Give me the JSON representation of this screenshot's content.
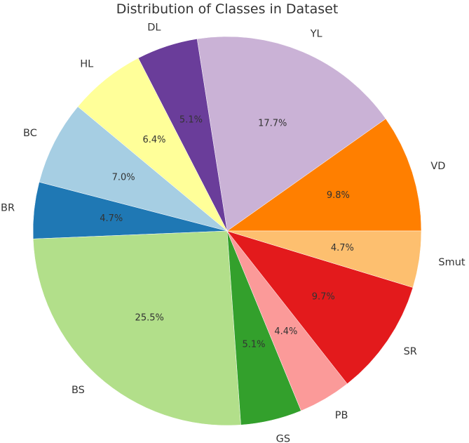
{
  "chart_data": {
    "type": "pie",
    "title": "Distribution of Classes in Dataset",
    "start_angle_deg": 0,
    "direction": "counterclockwise",
    "slices": [
      {
        "label": "VD",
        "value": 9.8,
        "pct_label": "9.8%",
        "color": "#ff7f00"
      },
      {
        "label": "YL",
        "value": 17.7,
        "pct_label": "17.7%",
        "color": "#cab2d6"
      },
      {
        "label": "DL",
        "value": 5.1,
        "pct_label": "5.1%",
        "color": "#6a3d9a"
      },
      {
        "label": "HL",
        "value": 6.4,
        "pct_label": "6.4%",
        "color": "#ffff99"
      },
      {
        "label": "BC",
        "value": 7.0,
        "pct_label": "7.0%",
        "color": "#a6cee3"
      },
      {
        "label": "BR",
        "value": 4.7,
        "pct_label": "4.7%",
        "color": "#1f78b4"
      },
      {
        "label": "BS",
        "value": 25.5,
        "pct_label": "25.5%",
        "color": "#b2df8a"
      },
      {
        "label": "GS",
        "value": 5.1,
        "pct_label": "5.1%",
        "color": "#33a02c"
      },
      {
        "label": "PB",
        "value": 4.4,
        "pct_label": "4.4%",
        "color": "#fb9a99"
      },
      {
        "label": "SR",
        "value": 9.7,
        "pct_label": "9.7%",
        "color": "#e31a1c"
      },
      {
        "label": "Smut",
        "value": 4.7,
        "pct_label": "4.7%",
        "color": "#fdbf6f"
      }
    ]
  }
}
